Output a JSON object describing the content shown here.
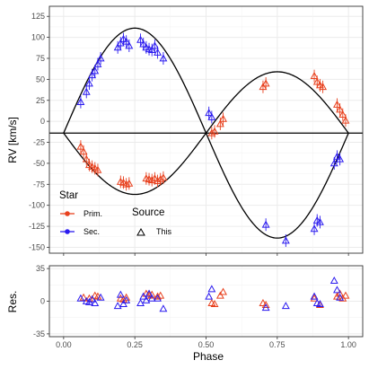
{
  "chart_data": [
    {
      "type": "scatter",
      "panel": "main",
      "xlabel": "",
      "ylabel": "RV [km/s]",
      "xlim": [
        -0.05,
        1.05
      ],
      "ylim": [
        -157,
        137
      ],
      "yticks": [
        -150,
        -125,
        -100,
        -75,
        -50,
        -25,
        0,
        25,
        50,
        75,
        100,
        125
      ],
      "xticks": [
        0.0,
        0.25,
        0.5,
        0.75,
        1.0
      ],
      "grid": true,
      "reference_line_y": -14,
      "model": {
        "systemic_velocity": -14,
        "primary_semi_amplitude": 73,
        "secondary_semi_amplitude": 125,
        "primary_phase_of_minimum": 0.25
      },
      "series": [
        {
          "name": "Prim.",
          "color": "#E8411E",
          "marker": "open-triangle",
          "x": [
            0.06,
            0.07,
            0.08,
            0.09,
            0.1,
            0.11,
            0.12,
            0.2,
            0.21,
            0.22,
            0.23,
            0.29,
            0.3,
            0.31,
            0.32,
            0.33,
            0.34,
            0.35,
            0.52,
            0.53,
            0.55,
            0.56,
            0.7,
            0.71,
            0.88,
            0.89,
            0.9,
            0.91,
            0.96,
            0.97,
            0.98,
            0.99
          ],
          "y": [
            -30,
            -36,
            -45,
            -52,
            -54,
            -56,
            -58,
            -72,
            -73,
            -75,
            -74,
            -68,
            -69,
            -70,
            -68,
            -71,
            -69,
            -67,
            -14,
            -12,
            -3,
            3,
            41,
            45,
            54,
            47,
            43,
            41,
            20,
            14,
            8,
            1
          ]
        },
        {
          "name": "Sec.",
          "color": "#2B1BEF",
          "marker": "open-triangle",
          "x": [
            0.06,
            0.08,
            0.09,
            0.1,
            0.11,
            0.12,
            0.13,
            0.19,
            0.2,
            0.21,
            0.22,
            0.23,
            0.27,
            0.28,
            0.29,
            0.3,
            0.31,
            0.32,
            0.33,
            0.35,
            0.51,
            0.52,
            0.71,
            0.78,
            0.88,
            0.89,
            0.9,
            0.95,
            0.96,
            0.97
          ],
          "y": [
            23,
            35,
            45,
            55,
            60,
            68,
            75,
            88,
            93,
            98,
            95,
            90,
            97,
            92,
            88,
            86,
            85,
            90,
            82,
            75,
            10,
            5,
            -123,
            -142,
            -128,
            -118,
            -120,
            -50,
            -42,
            -45
          ]
        }
      ],
      "legend": {
        "placement": "bottom-left",
        "star_title": "Star",
        "star_entries": [
          "Prim.",
          "Sec."
        ],
        "source_title": "Source",
        "source_entries": [
          "This"
        ]
      }
    },
    {
      "type": "scatter",
      "panel": "residuals",
      "xlabel": "Phase",
      "ylabel": "Res.",
      "xlim": [
        -0.05,
        1.05
      ],
      "ylim": [
        -38,
        38
      ],
      "yticks": [
        -35,
        0,
        35
      ],
      "xticks": [
        0.0,
        0.25,
        0.5,
        0.75,
        1.0
      ],
      "xticklabels": [
        "0.00",
        "0.25",
        "0.50",
        "0.75",
        "1.00"
      ],
      "grid": true,
      "series": [
        {
          "name": "Prim.",
          "color": "#E8411E",
          "marker": "open-triangle",
          "x": [
            0.07,
            0.09,
            0.11,
            0.12,
            0.2,
            0.21,
            0.22,
            0.29,
            0.3,
            0.31,
            0.33,
            0.34,
            0.52,
            0.53,
            0.55,
            0.56,
            0.7,
            0.71,
            0.88,
            0.9,
            0.96,
            0.97,
            0.98,
            0.99
          ],
          "y": [
            4,
            3,
            6,
            5,
            3,
            2,
            4,
            8,
            6,
            7,
            5,
            6,
            -2,
            -3,
            6,
            10,
            -2,
            -4,
            3,
            -4,
            5,
            8,
            3,
            6
          ]
        },
        {
          "name": "Sec.",
          "color": "#2B1BEF",
          "marker": "open-triangle",
          "x": [
            0.06,
            0.08,
            0.09,
            0.1,
            0.11,
            0.13,
            0.19,
            0.2,
            0.21,
            0.22,
            0.27,
            0.28,
            0.29,
            0.3,
            0.31,
            0.33,
            0.35,
            0.51,
            0.52,
            0.71,
            0.78,
            0.88,
            0.89,
            0.9,
            0.95,
            0.96,
            0.97
          ],
          "y": [
            3,
            0,
            -1,
            2,
            -2,
            4,
            -5,
            7,
            -3,
            1,
            -2,
            5,
            1,
            8,
            3,
            3,
            -8,
            5,
            13,
            -7,
            -5,
            5,
            -2,
            -3,
            22,
            12,
            4
          ]
        }
      ]
    }
  ]
}
